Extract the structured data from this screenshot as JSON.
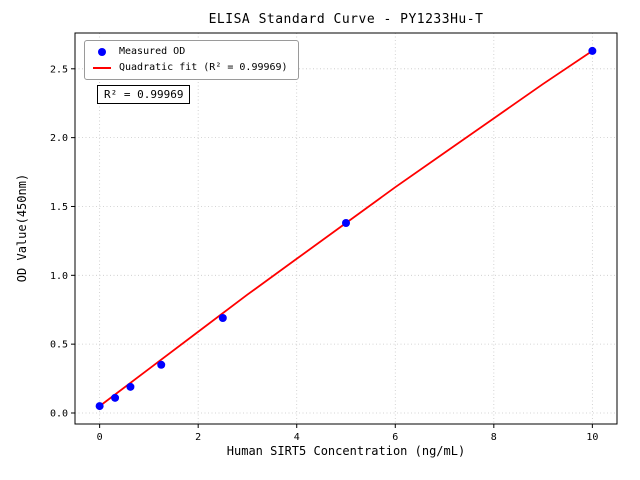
{
  "chart_data": {
    "type": "scatter",
    "title": "ELISA Standard Curve - PY1233Hu-T",
    "xlabel": "Human SIRT5 Concentration (ng/mL)",
    "ylabel": "OD Value(450nm)",
    "xlim": [
      -0.5,
      10.5
    ],
    "ylim": [
      -0.08,
      2.76
    ],
    "xticks": [
      0,
      2,
      4,
      6,
      8,
      10
    ],
    "yticks": [
      0.0,
      0.5,
      1.0,
      1.5,
      2.0,
      2.5
    ],
    "grid": true,
    "grid_color": "#c8c8c8",
    "frame_color": "#000000",
    "annotation": "R² = 0.99969",
    "legend_position": "upper-left",
    "legend": [
      {
        "label": "Measured OD",
        "marker": "dot",
        "color": "#0000ff"
      },
      {
        "label": "Quadratic fit (R² = 0.99969)",
        "marker": "line",
        "color": "#ff0000"
      }
    ],
    "series": [
      {
        "name": "Quadratic fit",
        "type": "line",
        "color": "#ff0000",
        "x": [
          0,
          1,
          2,
          3,
          4,
          5,
          6,
          7,
          8,
          9,
          10
        ],
        "y": [
          0.05,
          0.32,
          0.59,
          0.86,
          1.12,
          1.38,
          1.64,
          1.89,
          2.14,
          2.39,
          2.63
        ]
      },
      {
        "name": "Measured OD",
        "type": "scatter",
        "color": "#0000ff",
        "x": [
          0,
          0.313,
          0.625,
          1.25,
          2.5,
          5,
          10
        ],
        "y": [
          0.05,
          0.11,
          0.19,
          0.35,
          0.69,
          1.38,
          2.63
        ]
      }
    ]
  }
}
